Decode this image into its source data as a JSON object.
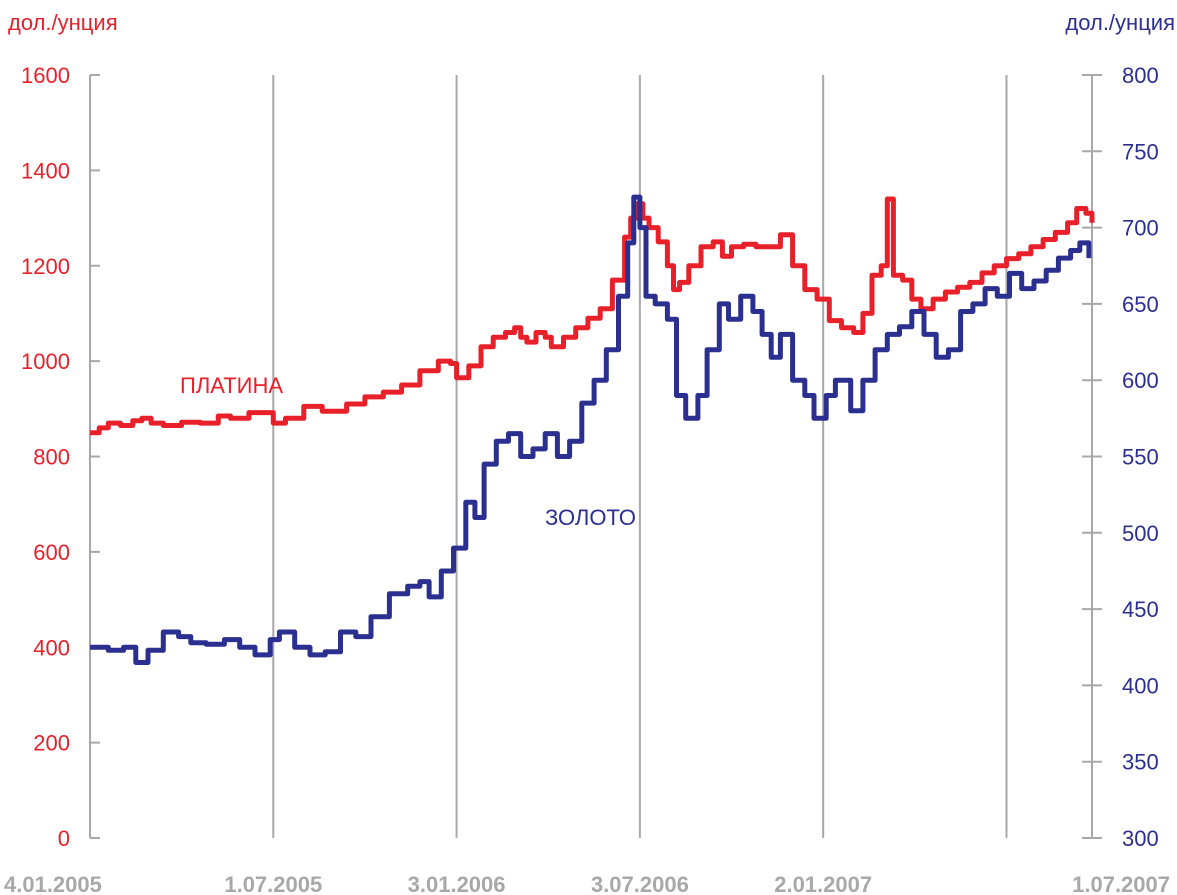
{
  "chart_data": {
    "type": "line",
    "left_axis_label": "дол./унция",
    "right_axis_label": "дол./унция",
    "left_axis": {
      "min": 0,
      "max": 1600,
      "ticks": [
        0,
        200,
        400,
        600,
        800,
        1000,
        1200,
        1400,
        1600
      ],
      "color": "#e8202a"
    },
    "right_axis": {
      "min": 300,
      "max": 800,
      "ticks": [
        300,
        350,
        400,
        450,
        500,
        550,
        600,
        650,
        700,
        750,
        800
      ],
      "color": "#2b2f8f"
    },
    "x_ticks": [
      "4.01.2005",
      "1.07.2005",
      "3.01.2006",
      "3.07.2006",
      "2.01.2007",
      "1.07.2007"
    ],
    "grid": "vertical",
    "series": [
      {
        "name": "ПЛАТИНА",
        "axis": "left",
        "color": "#e8202a",
        "points": [
          [
            0,
            850
          ],
          [
            0.15,
            860
          ],
          [
            0.3,
            870
          ],
          [
            0.5,
            865
          ],
          [
            0.7,
            875
          ],
          [
            0.85,
            880
          ],
          [
            1.0,
            870
          ],
          [
            1.2,
            865
          ],
          [
            1.5,
            872
          ],
          [
            1.8,
            870
          ],
          [
            2.1,
            885
          ],
          [
            2.3,
            880
          ],
          [
            2.6,
            892
          ],
          [
            3.0,
            870
          ],
          [
            3.2,
            880
          ],
          [
            3.5,
            905
          ],
          [
            3.8,
            895
          ],
          [
            4.2,
            910
          ],
          [
            4.5,
            925
          ],
          [
            4.8,
            935
          ],
          [
            5.1,
            950
          ],
          [
            5.4,
            980
          ],
          [
            5.7,
            1000
          ],
          [
            5.9,
            995
          ],
          [
            6.0,
            965
          ],
          [
            6.2,
            990
          ],
          [
            6.4,
            1030
          ],
          [
            6.6,
            1050
          ],
          [
            6.8,
            1060
          ],
          [
            6.95,
            1070
          ],
          [
            7.05,
            1050
          ],
          [
            7.15,
            1040
          ],
          [
            7.3,
            1060
          ],
          [
            7.45,
            1050
          ],
          [
            7.55,
            1030
          ],
          [
            7.75,
            1050
          ],
          [
            7.95,
            1070
          ],
          [
            8.15,
            1090
          ],
          [
            8.35,
            1110
          ],
          [
            8.55,
            1170
          ],
          [
            8.75,
            1260
          ],
          [
            8.85,
            1300
          ],
          [
            8.95,
            1330
          ],
          [
            9.05,
            1300
          ],
          [
            9.15,
            1280
          ],
          [
            9.3,
            1250
          ],
          [
            9.45,
            1200
          ],
          [
            9.55,
            1150
          ],
          [
            9.65,
            1165
          ],
          [
            9.8,
            1200
          ],
          [
            10.0,
            1240
          ],
          [
            10.2,
            1250
          ],
          [
            10.35,
            1220
          ],
          [
            10.5,
            1240
          ],
          [
            10.7,
            1245
          ],
          [
            10.9,
            1240
          ],
          [
            11.1,
            1240
          ],
          [
            11.3,
            1265
          ],
          [
            11.5,
            1200
          ],
          [
            11.7,
            1150
          ],
          [
            11.9,
            1130
          ],
          [
            12.1,
            1085
          ],
          [
            12.3,
            1070
          ],
          [
            12.5,
            1060
          ],
          [
            12.65,
            1100
          ],
          [
            12.8,
            1180
          ],
          [
            12.95,
            1200
          ],
          [
            13.05,
            1340
          ],
          [
            13.15,
            1180
          ],
          [
            13.3,
            1170
          ],
          [
            13.45,
            1130
          ],
          [
            13.6,
            1110
          ],
          [
            13.8,
            1130
          ],
          [
            14.0,
            1145
          ],
          [
            14.2,
            1155
          ],
          [
            14.4,
            1165
          ],
          [
            14.6,
            1185
          ],
          [
            14.8,
            1200
          ],
          [
            15.0,
            1215
          ],
          [
            15.2,
            1225
          ],
          [
            15.4,
            1240
          ],
          [
            15.6,
            1255
          ],
          [
            15.8,
            1270
          ],
          [
            16.0,
            1290
          ],
          [
            16.15,
            1320
          ],
          [
            16.3,
            1310
          ],
          [
            16.4,
            1290
          ]
        ]
      },
      {
        "name": "ЗОЛОТО",
        "axis": "right",
        "color": "#2b2f8f",
        "points": [
          [
            0,
            425
          ],
          [
            0.3,
            423
          ],
          [
            0.55,
            425
          ],
          [
            0.75,
            415
          ],
          [
            0.95,
            423
          ],
          [
            1.2,
            435
          ],
          [
            1.45,
            432
          ],
          [
            1.65,
            428
          ],
          [
            1.9,
            427
          ],
          [
            2.2,
            430
          ],
          [
            2.45,
            425
          ],
          [
            2.7,
            420
          ],
          [
            2.95,
            430
          ],
          [
            3.1,
            435
          ],
          [
            3.35,
            425
          ],
          [
            3.6,
            420
          ],
          [
            3.85,
            422
          ],
          [
            4.1,
            435
          ],
          [
            4.35,
            432
          ],
          [
            4.6,
            445
          ],
          [
            4.9,
            460
          ],
          [
            5.2,
            465
          ],
          [
            5.4,
            468
          ],
          [
            5.55,
            458
          ],
          [
            5.75,
            475
          ],
          [
            5.95,
            490
          ],
          [
            6.15,
            520
          ],
          [
            6.3,
            510
          ],
          [
            6.45,
            545
          ],
          [
            6.65,
            560
          ],
          [
            6.85,
            565
          ],
          [
            7.05,
            550
          ],
          [
            7.25,
            555
          ],
          [
            7.45,
            565
          ],
          [
            7.65,
            550
          ],
          [
            7.85,
            560
          ],
          [
            8.05,
            585
          ],
          [
            8.25,
            600
          ],
          [
            8.45,
            620
          ],
          [
            8.65,
            655
          ],
          [
            8.8,
            690
          ],
          [
            8.9,
            720
          ],
          [
            9.0,
            700
          ],
          [
            9.1,
            655
          ],
          [
            9.25,
            650
          ],
          [
            9.45,
            640
          ],
          [
            9.6,
            590
          ],
          [
            9.75,
            575
          ],
          [
            9.95,
            590
          ],
          [
            10.1,
            620
          ],
          [
            10.3,
            650
          ],
          [
            10.45,
            640
          ],
          [
            10.65,
            655
          ],
          [
            10.85,
            645
          ],
          [
            11.0,
            630
          ],
          [
            11.15,
            615
          ],
          [
            11.3,
            630
          ],
          [
            11.5,
            600
          ],
          [
            11.7,
            590
          ],
          [
            11.85,
            575
          ],
          [
            12.05,
            590
          ],
          [
            12.2,
            600
          ],
          [
            12.45,
            580
          ],
          [
            12.65,
            600
          ],
          [
            12.85,
            620
          ],
          [
            13.05,
            630
          ],
          [
            13.25,
            635
          ],
          [
            13.45,
            645
          ],
          [
            13.65,
            630
          ],
          [
            13.85,
            615
          ],
          [
            14.05,
            620
          ],
          [
            14.25,
            645
          ],
          [
            14.45,
            650
          ],
          [
            14.65,
            660
          ],
          [
            14.85,
            655
          ],
          [
            15.05,
            670
          ],
          [
            15.25,
            660
          ],
          [
            15.45,
            665
          ],
          [
            15.65,
            672
          ],
          [
            15.85,
            680
          ],
          [
            16.05,
            685
          ],
          [
            16.2,
            690
          ],
          [
            16.35,
            680
          ]
        ]
      }
    ],
    "annotations": [
      {
        "text": "ПЛАТИНА",
        "series": "ПЛАТИНА"
      },
      {
        "text": "ЗОЛОТО",
        "series": "ЗОЛОТО"
      }
    ]
  }
}
